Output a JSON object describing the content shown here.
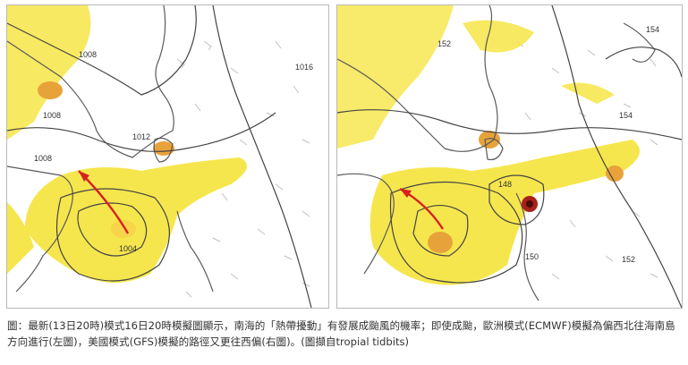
{
  "figure": {
    "left_map": {
      "isobar_labels": [
        "1008",
        "1016",
        "1012",
        "1008",
        "1008",
        "1004"
      ]
    },
    "right_map": {
      "isobar_labels": [
        "152",
        "154",
        "154",
        "148",
        "150",
        "152"
      ]
    },
    "caption": "圖：最新(13日20時)模式16日20時模擬圖顯示，南海的「熱帶擾動」有發展成颱風的機率；即使成颱，歐洲模式(ECMWF)模擬為偏西北往海南島方向進行(左圖)，美國模式(GFS)模擬的路徑又更往西偏(右圖)。(圖擷自tropial tidbits)"
  },
  "colors": {
    "land_line": "#5a5a5a",
    "isobar": "#444444",
    "precip_yellow": "#f5e33a",
    "precip_orange": "#e8a23a",
    "track_arrow": "#d8201c",
    "wind_barb": "#b8b8b8"
  }
}
